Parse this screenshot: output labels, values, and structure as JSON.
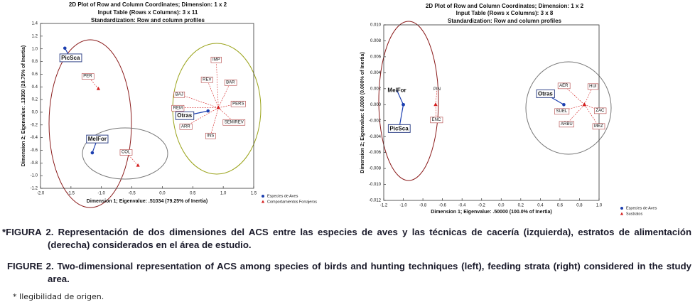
{
  "chart_data": [
    {
      "type": "scatter",
      "title": [
        "2D Plot of Row and Column Coordinates; Dimension:  1  x  2",
        "Input Table (Rows x Columns): 3 x 11",
        "Standardization: Row and column profiles"
      ],
      "xlabel": "Dimension 1; Eigenvalue: .51034 (79.25% of Inertia)",
      "ylabel": "Dimension 2; Eigenvalue: .13350 (20.75% of Inertia)",
      "xlim": [
        -2,
        1.5
      ],
      "xticks": [
        {
          "value": -2,
          "label": "-2.0"
        },
        -1.5,
        {
          "value": -1,
          "label": "-1.0"
        },
        -0.5,
        {
          "value": 0,
          "label": "0.0"
        },
        0.5,
        {
          "value": 1,
          "label": "1.0"
        },
        1.5
      ],
      "ylim": [
        -1.2,
        1.4
      ],
      "yticks": [
        -1.2,
        {
          "value": -1,
          "label": "-1.0"
        },
        -0.8,
        -0.6,
        -0.4,
        -0.2,
        {
          "value": 0,
          "label": "0.0"
        },
        0.2,
        0.4,
        0.6,
        0.8,
        {
          "value": 1,
          "label": "1.0"
        },
        1.2,
        1.4
      ],
      "legend": "lower right",
      "series": [
        {
          "name": "Especies de Aves",
          "color": "#1c3fb0",
          "marker": "circle",
          "labels": [
            "PicSca",
            "MelFor",
            "Otras"
          ],
          "x": [
            -1.6,
            -1.15,
            0.75
          ],
          "y": [
            1.01,
            -0.64,
            0.02
          ]
        },
        {
          "name": "Comportamientos Forrajeros",
          "color": "#d42020",
          "marker": "triangle",
          "labels": [
            "PER",
            "COL",
            "IMP",
            "REV",
            "BAR",
            "BAJ",
            "PERS",
            "REM",
            "SEMIREV",
            "ARR",
            "INS"
          ],
          "x": [
            -1.05,
            -0.4,
            0.92,
            0.92,
            0.92,
            0.92,
            0.92,
            0.92,
            0.92,
            0.92,
            0.92
          ],
          "y": [
            0.37,
            -0.84,
            0.07,
            0.07,
            0.07,
            0.07,
            0.07,
            0.07,
            0.07,
            0.07,
            0.07
          ]
        }
      ]
    },
    {
      "type": "scatter",
      "title": [
        "2D Plot of Row and Column Coordinates; Dimension:  1  x  2",
        "Input Table (Rows x Columns): 3 x 8",
        "Standardization: Row and column profiles"
      ],
      "xlabel": "Dimension 1; Eigenvalue: .50000 (100.0% of Inertia)",
      "ylabel": "Dimension 2; Eigenvalue: 0.0000 (0.000% of Inertia)",
      "xlim": [
        -1.2,
        1
      ],
      "xticks": [
        -1.2,
        {
          "value": -1,
          "label": "-1.0"
        },
        -0.8,
        -0.6,
        -0.4,
        -0.2,
        {
          "value": 0,
          "label": "0.0"
        },
        0.2,
        0.4,
        0.6,
        0.8,
        {
          "value": 1,
          "label": "1.0"
        }
      ],
      "ylim": [
        -0.012,
        0.01
      ],
      "yticks": [
        -0.012,
        {
          "value": -0.01,
          "label": "-0.010"
        },
        -0.008,
        -0.006,
        -0.004,
        -0.002,
        {
          "value": 0,
          "label": "0.000"
        },
        0.002,
        0.004,
        0.006,
        0.008,
        {
          "value": 0.01,
          "label": "0.010"
        }
      ],
      "legend": "lower right",
      "series": [
        {
          "name": "Especies de Aves",
          "color": "#1c3fb0",
          "marker": "circle",
          "labels": [
            "MelFor",
            "PicSca",
            "Otras"
          ],
          "x": [
            -1,
            -1,
            0.64
          ],
          "y": [
            0,
            0,
            0
          ]
        },
        {
          "name": "Sustratos",
          "color": "#d42020",
          "marker": "triangle",
          "labels": [
            "PIN",
            "ENC",
            "AER",
            "HUI",
            "ZAC",
            "MEZ",
            "ARBU",
            "SUEL"
          ],
          "x": [
            -0.67,
            -0.67,
            0.85,
            0.85,
            0.85,
            0.85,
            0.85,
            0.85
          ],
          "y": [
            0,
            0,
            0,
            0,
            0,
            0,
            0,
            0
          ]
        }
      ]
    }
  ],
  "caption_es": "*FIGURA 2. Representación de dos dimensiones del ACS entre las especies de aves y las técnicas de cacería (izquierda), estratos de alimentación (derecha) considerados en el  área de estudio.",
  "caption_en": "FIGURE 2. Two-dimensional representation of ACS among species of birds and hunting techniques (left), feeding strata (right) considered in the study area.",
  "footnote": "* Ilegibilidad de origen."
}
